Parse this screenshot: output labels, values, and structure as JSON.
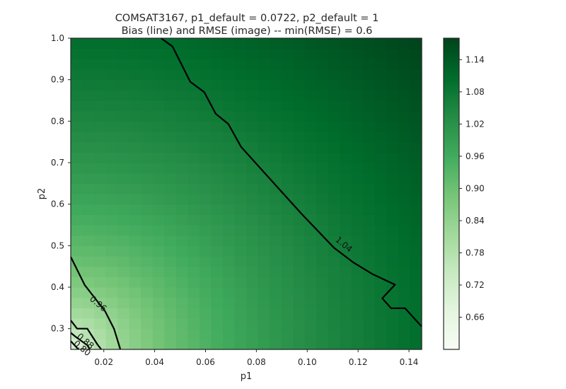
{
  "chart_data": {
    "type": "heatmap",
    "title_line1": "COMSAT3167, p1_default = 0.0722, p2_default = 1",
    "title_line2": "Bias (line) and RMSE (image) -- min(RMSE) = 0.6",
    "xlabel": "p1",
    "ylabel": "p2",
    "xlim": [
      0.007,
      0.145
    ],
    "ylim": [
      0.25,
      1.0
    ],
    "xticks": [
      0.02,
      0.04,
      0.06,
      0.08,
      0.1,
      0.12,
      0.14
    ],
    "xtick_labels": [
      "0.02",
      "0.04",
      "0.06",
      "0.08",
      "0.10",
      "0.12",
      "0.14"
    ],
    "yticks": [
      0.3,
      0.4,
      0.5,
      0.6,
      0.7,
      0.8,
      0.9,
      1.0
    ],
    "ytick_labels": [
      "0.3",
      "0.4",
      "0.5",
      "0.6",
      "0.7",
      "0.8",
      "0.9",
      "1.0"
    ],
    "colorbar": {
      "vmin": 0.6,
      "vmax": 1.18,
      "ticks": [
        0.66,
        0.72,
        0.78,
        0.84,
        0.9,
        0.96,
        1.02,
        1.08,
        1.14
      ],
      "tick_labels": [
        "0.66",
        "0.72",
        "0.78",
        "0.84",
        "0.90",
        "0.96",
        "1.02",
        "1.08",
        "1.14"
      ],
      "colormap": "Greens",
      "low_color": "#f7fcf5",
      "high_color": "#00441b"
    },
    "grid": false,
    "contours": [
      {
        "label": "1.04",
        "label_at": [
          0.1144,
          0.503
        ],
        "points": [
          [
            0.0425,
            1.0
          ],
          [
            0.047,
            0.98
          ],
          [
            0.054,
            0.895
          ],
          [
            0.0595,
            0.87
          ],
          [
            0.064,
            0.818
          ],
          [
            0.069,
            0.793
          ],
          [
            0.074,
            0.738
          ],
          [
            0.0855,
            0.66
          ],
          [
            0.098,
            0.575
          ],
          [
            0.1105,
            0.495
          ],
          [
            0.118,
            0.46
          ],
          [
            0.1255,
            0.432
          ],
          [
            0.1345,
            0.406
          ],
          [
            0.1295,
            0.373
          ],
          [
            0.133,
            0.349
          ],
          [
            0.1385,
            0.349
          ],
          [
            0.145,
            0.305
          ]
        ]
      },
      {
        "label": "0.96",
        "label_at": [
          0.0178,
          0.36
        ],
        "points": [
          [
            0.007,
            0.473
          ],
          [
            0.0125,
            0.405
          ],
          [
            0.0205,
            0.342
          ],
          [
            0.024,
            0.3
          ],
          [
            0.0265,
            0.25
          ]
        ]
      },
      {
        "label": "0.88",
        "label_at": [
          0.0128,
          0.27
        ],
        "points": [
          [
            0.007,
            0.32
          ],
          [
            0.0095,
            0.3
          ],
          [
            0.0135,
            0.3
          ],
          [
            0.0175,
            0.262
          ],
          [
            0.019,
            0.25
          ]
        ]
      },
      {
        "label": "0.80",
        "label_at": [
          0.0115,
          0.253
        ],
        "points": [
          [
            0.007,
            0.29
          ],
          [
            0.009,
            0.28
          ],
          [
            0.0135,
            0.26
          ],
          [
            0.0145,
            0.25
          ]
        ]
      },
      {
        "label": "",
        "label_at": null,
        "points": [
          [
            0.007,
            0.27
          ],
          [
            0.01,
            0.25
          ]
        ]
      }
    ],
    "rmse_model": {
      "center": [
        0.007,
        0.25
      ],
      "x_span": 0.138,
      "y_span": 0.75,
      "base": 0.6,
      "gain": 0.58,
      "exponent": 0.4
    }
  }
}
